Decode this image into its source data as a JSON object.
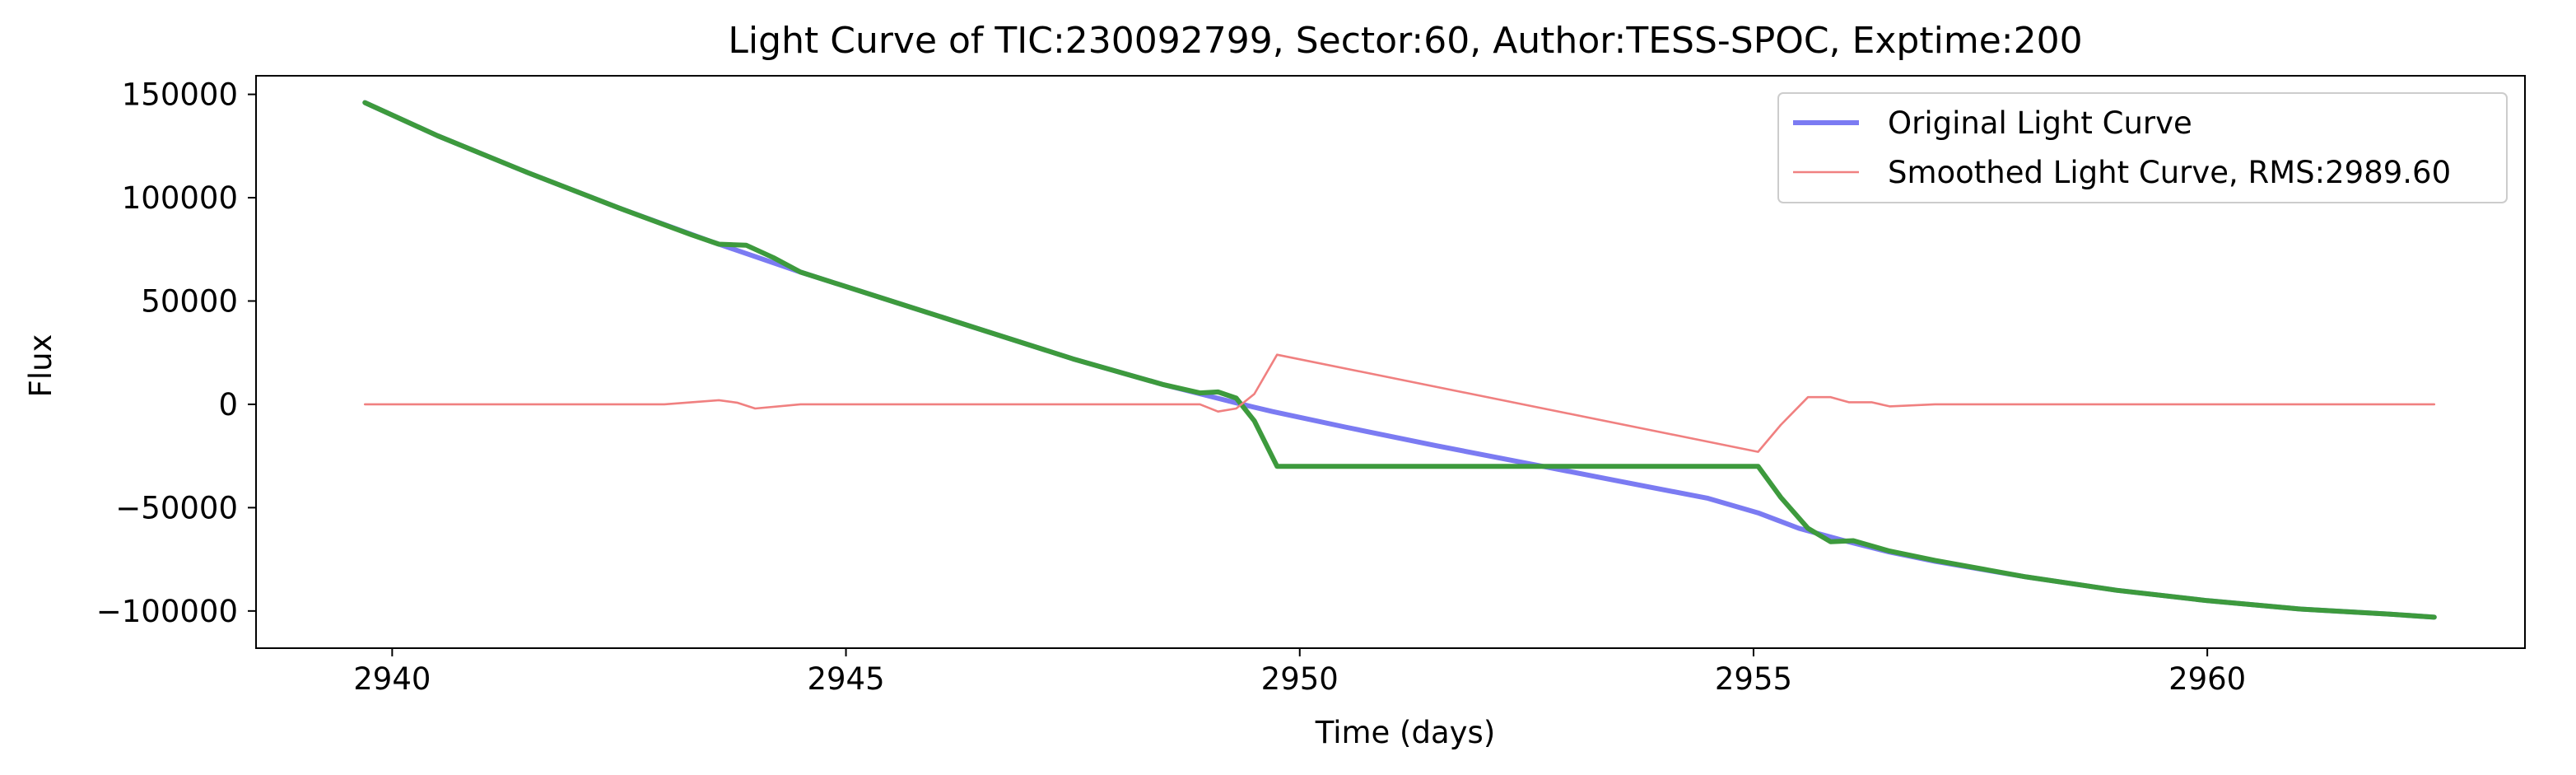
{
  "chart_data": {
    "type": "line",
    "title": "Light Curve of TIC:230092799, Sector:60, Author:TESS-SPOC, Exptime:200",
    "xlabel": "Time (days)",
    "ylabel": "Flux",
    "xlim": [
      2938.5,
      2963.5
    ],
    "ylim": [
      -118000,
      159000
    ],
    "xticks": [
      2940,
      2945,
      2950,
      2955,
      2960
    ],
    "yticks": [
      150000,
      100000,
      50000,
      0,
      -50000,
      -100000
    ],
    "xtick_labels": [
      "2940",
      "2945",
      "2950",
      "2955",
      "2960"
    ],
    "ytick_labels": [
      "150000",
      "100000",
      "50000",
      "0",
      "−50000",
      "−100000"
    ],
    "grid": false,
    "legend_position": "top-right",
    "series": [
      {
        "name": "Original Light Curve",
        "color": "#7b7bf2",
        "style": "thick",
        "x": [
          2939.7,
          2940.5,
          2941.5,
          2942.5,
          2943.5,
          2944.5,
          2945.5,
          2946.5,
          2947.5,
          2948.5,
          2949.0,
          2949.3,
          2949.7,
          2950.5,
          2951.5,
          2952.5,
          2953.5,
          2954.5,
          2955.05,
          2955.5,
          2956.0,
          2956.5,
          2957.0,
          2958.0,
          2959.0,
          2960.0,
          2961.0,
          2962.0,
          2962.5
        ],
        "y": [
          146000,
          130000,
          112000,
          95000,
          79000,
          64000,
          50000,
          36000,
          22000,
          9500,
          4000,
          700,
          -3500,
          -11000,
          -20000,
          -28500,
          -37000,
          -45500,
          -52500,
          -60000,
          -66000,
          -71500,
          -76000,
          -83500,
          -90000,
          -95000,
          -99000,
          -101500,
          -103000
        ]
      },
      {
        "name": "",
        "color": "#3d9a3d",
        "style": "thick",
        "x": [
          2939.7,
          2940.5,
          2941.5,
          2942.5,
          2943.3,
          2943.6,
          2943.9,
          2944.2,
          2944.5,
          2945.5,
          2946.5,
          2947.5,
          2948.5,
          2948.9,
          2949.1,
          2949.3,
          2949.5,
          2949.75,
          2950.5,
          2952.0,
          2953.5,
          2955.05,
          2955.3,
          2955.6,
          2955.85,
          2956.1,
          2956.5,
          2957.0,
          2958.0,
          2959.0,
          2960.0,
          2961.0,
          2962.0,
          2962.5
        ],
        "y": [
          146000,
          130000,
          112000,
          95000,
          82000,
          77500,
          77000,
          71000,
          64000,
          50000,
          36000,
          22000,
          9500,
          5500,
          6000,
          3000,
          -8000,
          -30000,
          -30000,
          -30000,
          -30000,
          -30000,
          -45000,
          -60000,
          -66500,
          -66000,
          -71000,
          -75500,
          -83500,
          -90000,
          -95000,
          -99000,
          -101500,
          -103000
        ]
      },
      {
        "name": "Smoothed Light Curve, RMS:2989.60",
        "color": "#f08080",
        "style": "thin",
        "x": [
          2939.7,
          2941.0,
          2942.0,
          2943.0,
          2943.6,
          2943.8,
          2944.0,
          2944.5,
          2945.0,
          2946.0,
          2947.0,
          2948.0,
          2948.9,
          2949.1,
          2949.3,
          2949.5,
          2949.75,
          2955.05,
          2955.3,
          2955.6,
          2955.85,
          2956.05,
          2956.3,
          2956.5,
          2957.0,
          2958.0,
          2959.0,
          2960.0,
          2961.0,
          2962.0,
          2962.5
        ],
        "y": [
          0,
          0,
          0,
          0,
          2000,
          800,
          -2000,
          0,
          0,
          0,
          0,
          0,
          0,
          -3500,
          -2000,
          5000,
          24000,
          -23000,
          -10000,
          3500,
          3500,
          1000,
          1000,
          -1000,
          0,
          0,
          0,
          0,
          0,
          0,
          0
        ]
      }
    ],
    "legend": [
      {
        "label": "Original Light Curve",
        "color": "#7b7bf2",
        "style": "thick"
      },
      {
        "label": "Smoothed Light Curve, RMS:2989.60",
        "color": "#f08080",
        "style": "thin"
      }
    ]
  }
}
